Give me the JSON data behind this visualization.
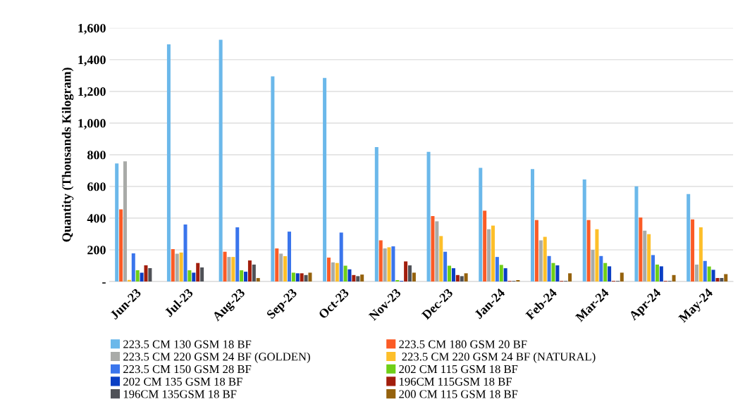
{
  "chart_data": {
    "type": "bar",
    "ylabel": "Quantity (Thousands Kilogram)",
    "categories": [
      "Jun-23",
      "Jul-23",
      "Aug-23",
      "Sep-23",
      "Oct-23",
      "Nov-23",
      "Dec-23",
      "Jan-24",
      "Feb-24",
      "Mar-24",
      "Apr-24",
      "May-24"
    ],
    "series": [
      {
        "name": "223.5 CM 130 GSM 18 BF",
        "color": "#6bb8ea",
        "values": [
          745,
          1497,
          1525,
          1295,
          1285,
          848,
          818,
          717,
          710,
          644,
          601,
          552
        ]
      },
      {
        "name": "223.5 CM 180 GSM 20 BF",
        "color": "#fb5b26",
        "values": [
          455,
          204,
          188,
          209,
          151,
          260,
          413,
          447,
          388,
          388,
          404,
          392
        ]
      },
      {
        "name": "223.5 CM 220 GSM 24 BF (GOLDEN)",
        "color": "#a9aba8",
        "values": [
          758,
          176,
          155,
          176,
          121,
          209,
          380,
          330,
          260,
          200,
          321,
          107
        ]
      },
      {
        "name": " 223.5 CM 220 GSM 24 BF (NATURAL)",
        "color": "#fdbf2a",
        "values": [
          10,
          183,
          155,
          160,
          117,
          216,
          287,
          353,
          282,
          330,
          299,
          342
        ]
      },
      {
        "name": "223.5 CM 150 GSM 28 BF",
        "color": "#3a75ec",
        "values": [
          178,
          360,
          342,
          315,
          309,
          222,
          188,
          155,
          161,
          161,
          167,
          130
        ]
      },
      {
        "name": "202 CM 115 GSM 18 BF",
        "color": "#6fcf17",
        "values": [
          71,
          71,
          71,
          56,
          100,
          9,
          100,
          105,
          117,
          117,
          107,
          95
        ]
      },
      {
        "name": "202 CM 135 GSM 18 BF",
        "color": "#0a3fc4",
        "values": [
          56,
          56,
          62,
          52,
          77,
          4,
          84,
          84,
          102,
          96,
          96,
          74
        ]
      },
      {
        "name": "196CM 115GSM 18 BF",
        "color": "#a21e0c",
        "values": [
          102,
          117,
          133,
          52,
          41,
          127,
          41,
          4,
          4,
          4,
          4,
          22
        ]
      },
      {
        "name": "196CM 135GSM 18 BF",
        "color": "#4f5157",
        "values": [
          84,
          89,
          107,
          41,
          34,
          102,
          34,
          4,
          4,
          4,
          4,
          22
        ]
      },
      {
        "name": "200 CM 115 GSM 18 BF",
        "color": "#95620d",
        "values": [
          0,
          0,
          22,
          56,
          44,
          56,
          52,
          9,
          52,
          56,
          41,
          47
        ]
      }
    ],
    "ylim": [
      0,
      1600
    ],
    "yticks": [
      {
        "value": 0,
        "label": "-"
      },
      {
        "value": 200,
        "label": "200"
      },
      {
        "value": 400,
        "label": "400"
      },
      {
        "value": 600,
        "label": "600"
      },
      {
        "value": 800,
        "label": "800"
      },
      {
        "value": 1000,
        "label": "1,000"
      },
      {
        "value": 1200,
        "label": "1,200"
      },
      {
        "value": 1400,
        "label": "1,400"
      },
      {
        "value": 1600,
        "label": "1,600"
      }
    ],
    "grid": "y",
    "legend": "bottom"
  }
}
